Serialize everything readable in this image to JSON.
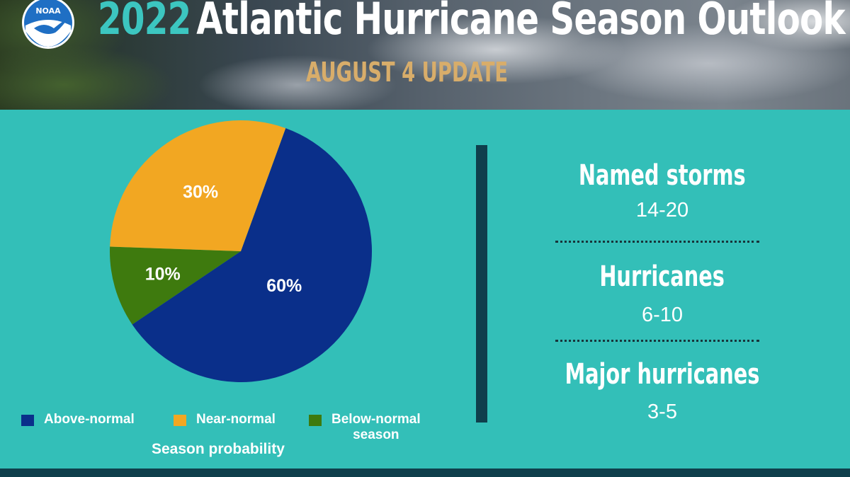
{
  "header": {
    "logo_text": "NOAA",
    "title_year": "2022",
    "title_rest": "Atlantic Hurricane Season Outlook",
    "subtitle": "AUGUST 4 UPDATE"
  },
  "colors": {
    "above_normal": "#0a2f8a",
    "near_normal": "#f2a722",
    "below_normal": "#3e7a0e",
    "background": "#33bfb8",
    "title_year": "#3cc6c0",
    "subtitle": "#d8ad6a",
    "divider": "#0f3f4c"
  },
  "chart_data": {
    "type": "pie",
    "title": "Season probability",
    "start_angle_deg": 20,
    "slices": [
      {
        "name": "Above-normal",
        "value": 60,
        "label": "60%",
        "color": "#0a2f8a"
      },
      {
        "name": "Below-normal season",
        "value": 10,
        "label": "10%",
        "color": "#3e7a0e"
      },
      {
        "name": "Near-normal",
        "value": 30,
        "label": "30%",
        "color": "#f2a722"
      }
    ],
    "legend_placement": "bottom"
  },
  "legend": {
    "above": "Above-normal",
    "near": "Near-normal",
    "below_line1": "Below-normal",
    "below_line2": "season",
    "caption": "Season probability"
  },
  "stats": [
    {
      "label": "Named storms",
      "value": "14-20"
    },
    {
      "label": "Hurricanes",
      "value": "6-10"
    },
    {
      "label": "Major hurricanes",
      "value": "3-5"
    }
  ]
}
